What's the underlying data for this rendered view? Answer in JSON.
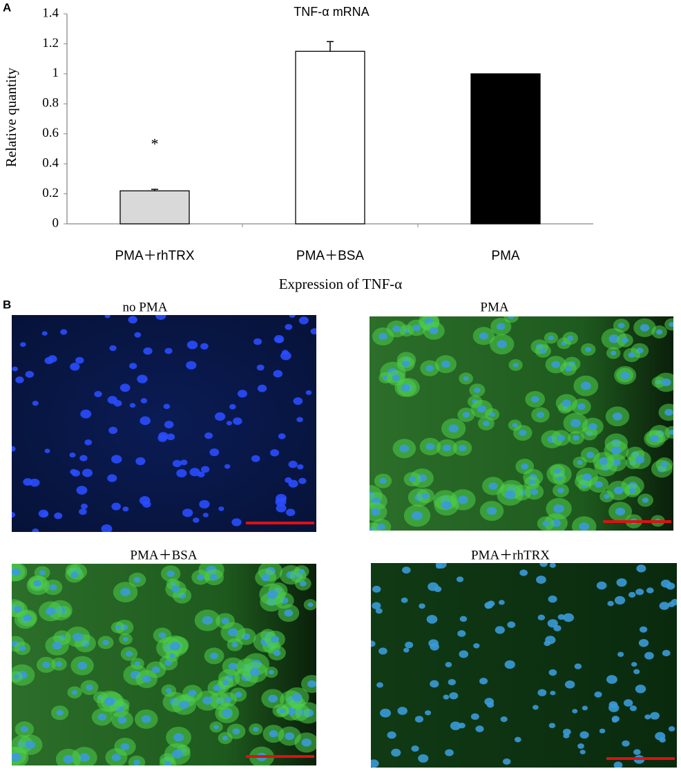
{
  "chart_data": {
    "type": "bar",
    "title": "TNF-α  mRNA",
    "y_label": "Relative quantity",
    "x_label": "Expression of TNF-α",
    "categories": [
      "PMA＋rhTRX",
      "PMA＋BSA",
      "PMA"
    ],
    "values": [
      0.22,
      1.15,
      1.0
    ],
    "errors": [
      0.01,
      0.065,
      null
    ],
    "colors": [
      "#d9d9d9",
      "#ffffff",
      "#000000"
    ],
    "annotations": [
      {
        "text": "*",
        "category": 0,
        "y": 0.55
      }
    ],
    "ylim": [
      0,
      1.4
    ],
    "yticks": [
      0,
      0.2,
      0.4,
      0.6,
      0.8,
      1,
      1.2,
      1.4
    ],
    "grid": false
  },
  "panel_labels": [
    "A",
    "B"
  ],
  "images": [
    {
      "title": "no PMA"
    },
    {
      "title": "PMA"
    },
    {
      "title": "PMA＋BSA"
    },
    {
      "title": "PMA＋rhTRX"
    }
  ]
}
